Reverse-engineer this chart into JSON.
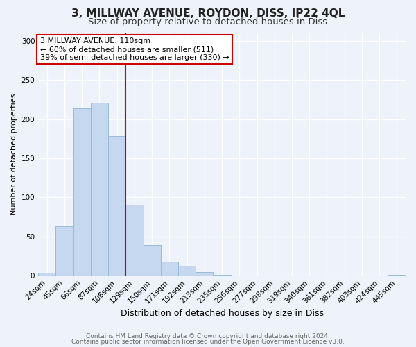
{
  "title": "3, MILLWAY AVENUE, ROYDON, DISS, IP22 4QL",
  "subtitle": "Size of property relative to detached houses in Diss",
  "xlabel": "Distribution of detached houses by size in Diss",
  "ylabel": "Number of detached properties",
  "bar_values": [
    4,
    63,
    214,
    221,
    178,
    91,
    39,
    18,
    13,
    5,
    1,
    0,
    0,
    0,
    0,
    0,
    0,
    0,
    0,
    0,
    1
  ],
  "bin_labels": [
    "24sqm",
    "45sqm",
    "66sqm",
    "87sqm",
    "108sqm",
    "129sqm",
    "150sqm",
    "171sqm",
    "192sqm",
    "213sqm",
    "235sqm",
    "256sqm",
    "277sqm",
    "298sqm",
    "319sqm",
    "340sqm",
    "361sqm",
    "382sqm",
    "403sqm",
    "424sqm",
    "445sqm"
  ],
  "bar_color": "#c5d8ef",
  "bar_edge_color": "#9bbcd8",
  "vline_x": 4.5,
  "vline_color": "#cc0000",
  "annotation_text": "3 MILLWAY AVENUE: 110sqm\n← 60% of detached houses are smaller (511)\n39% of semi-detached houses are larger (330) →",
  "annotation_box_color": "white",
  "annotation_box_edge_color": "#cc0000",
  "ylim": [
    0,
    310
  ],
  "yticks": [
    0,
    50,
    100,
    150,
    200,
    250,
    300
  ],
  "footer_line1": "Contains HM Land Registry data © Crown copyright and database right 2024.",
  "footer_line2": "Contains public sector information licensed under the Open Government Licence v3.0.",
  "background_color": "#eef2fa",
  "grid_color": "white",
  "title_fontsize": 11,
  "subtitle_fontsize": 9.5,
  "xlabel_fontsize": 9,
  "ylabel_fontsize": 8,
  "tick_fontsize": 7.5,
  "annotation_fontsize": 8,
  "footer_fontsize": 6.5
}
